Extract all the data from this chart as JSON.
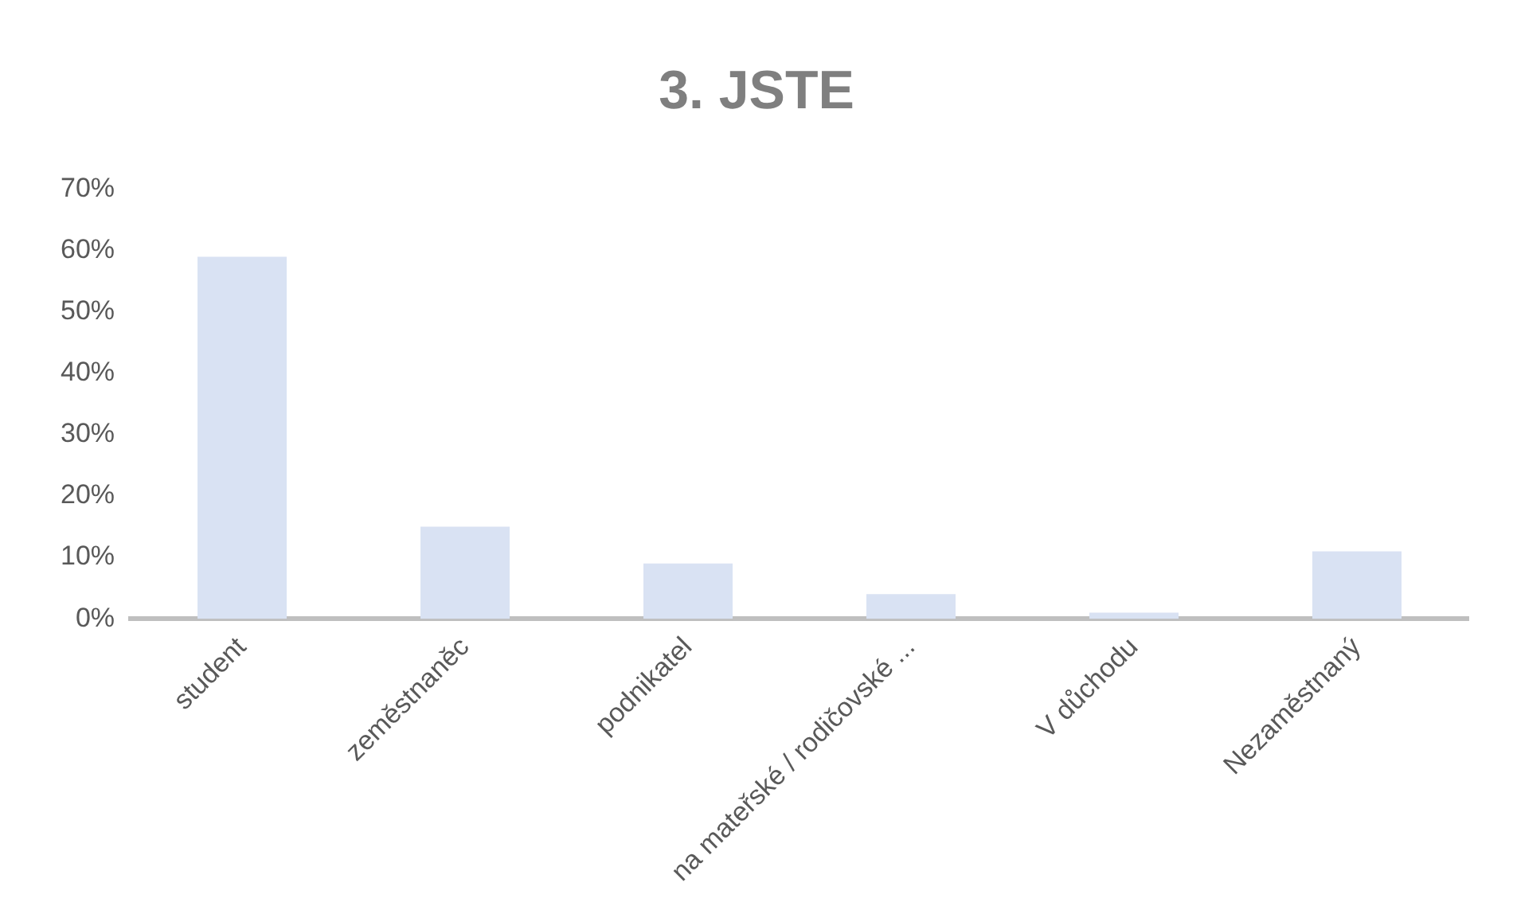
{
  "chart_data": {
    "type": "bar",
    "title": "3. JSTE",
    "categories": [
      "student",
      "zeměstnaněc",
      "podnikatel",
      "na mateřské / rodičovské ...",
      "V důchodu",
      "Nezaměstnaný"
    ],
    "values": [
      59,
      15,
      9,
      4,
      1,
      11
    ],
    "color": "#d9e2f3",
    "ylim": [
      0,
      70
    ],
    "yticks": [
      {
        "value": 0,
        "label": "0%"
      },
      {
        "value": 10,
        "label": "10%"
      },
      {
        "value": 20,
        "label": "20%"
      },
      {
        "value": 30,
        "label": "30%"
      },
      {
        "value": 40,
        "label": "40%"
      },
      {
        "value": 50,
        "label": "50%"
      },
      {
        "value": 60,
        "label": "60%"
      },
      {
        "value": 70,
        "label": "70%"
      }
    ],
    "grid": false,
    "legend": false
  }
}
